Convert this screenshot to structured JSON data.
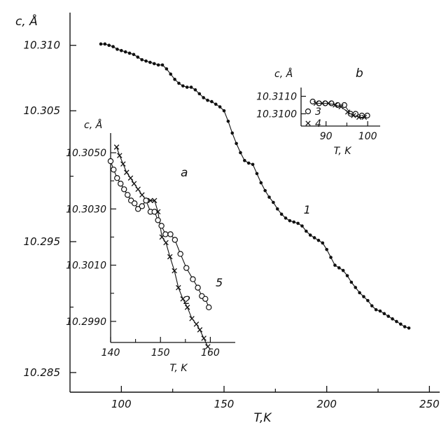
{
  "chart_data": [
    {
      "id": "main",
      "type": "scatter",
      "ylabel": "c, Å",
      "xlabel": "T,K",
      "xlim": [
        75,
        255
      ],
      "ylim": [
        10.2835,
        10.3125
      ],
      "xticks": [
        100,
        150,
        200,
        250
      ],
      "yticks": [
        10.285,
        10.295,
        10.305,
        10.31
      ],
      "ytick_labels": [
        "10.285",
        "10.295",
        "10.305",
        "10.310"
      ],
      "xminor": [
        125,
        175,
        225
      ],
      "yminor": [
        10.29,
        10.3
      ],
      "series": [
        {
          "name": "1",
          "marker": "dot",
          "x": [
            90,
            92,
            94,
            96,
            98,
            100,
            102,
            104,
            106,
            108,
            110,
            112,
            114,
            116,
            118,
            120,
            122,
            124,
            126,
            128,
            130,
            132,
            134,
            136,
            138,
            140,
            142,
            144,
            146,
            148,
            150,
            152,
            154,
            156,
            158,
            160,
            162,
            164,
            166,
            168,
            170,
            172,
            174,
            176,
            178,
            180,
            182,
            184,
            186,
            188,
            190,
            192,
            194,
            196,
            198,
            200,
            202,
            204,
            206,
            208,
            210,
            212,
            214,
            216,
            218,
            220,
            222,
            224,
            226,
            228,
            230,
            232,
            234,
            236,
            238,
            240
          ],
          "y": [
            10.3101,
            10.3101,
            10.31,
            10.3099,
            10.3097,
            10.3096,
            10.3095,
            10.3094,
            10.3093,
            10.3091,
            10.3089,
            10.3088,
            10.3087,
            10.3086,
            10.3085,
            10.3085,
            10.3082,
            10.3078,
            10.3074,
            10.3071,
            10.3069,
            10.3068,
            10.3068,
            10.3066,
            10.3063,
            10.306,
            10.3058,
            10.3057,
            10.3055,
            10.3053,
            10.305,
            10.3042,
            10.3033,
            10.3025,
            10.3018,
            10.3012,
            10.301,
            10.3009,
            10.3002,
            10.2995,
            10.2989,
            10.2984,
            10.298,
            10.2975,
            10.2971,
            10.2968,
            10.2966,
            10.2965,
            10.2964,
            10.2962,
            10.2958,
            10.2955,
            10.2953,
            10.2951,
            10.2949,
            10.2944,
            10.2938,
            10.2932,
            10.293,
            10.2928,
            10.2924,
            10.2919,
            10.2915,
            10.2911,
            10.2908,
            10.2905,
            10.2901,
            10.2898,
            10.2897,
            10.2895,
            10.2893,
            10.2891,
            10.2889,
            10.2887,
            10.2885,
            10.2884
          ]
        }
      ],
      "curve_label": "1",
      "color": "#111111"
    },
    {
      "id": "inset-a",
      "type": "scatter",
      "panel_label": "a",
      "ylabel": "c, Å",
      "xlabel": "T, K",
      "xlim": [
        140,
        165
      ],
      "ylim": [
        10.29825,
        10.3057
      ],
      "xticks": [
        140,
        150,
        160
      ],
      "xminor": [
        145,
        155
      ],
      "yticks": [
        10.299,
        10.301,
        10.303,
        10.305
      ],
      "ytick_labels": [
        "10.2990",
        "10.3010",
        "10.3030",
        "10.3050"
      ],
      "yminor": [
        10.3,
        10.302,
        10.304
      ],
      "series": [
        {
          "name": "2",
          "marker": "x",
          "x": [
            141.2,
            141.8,
            142.5,
            143.2,
            144.0,
            144.7,
            145.5,
            146.3,
            147.2,
            148.0,
            148.8,
            149.5,
            150.3,
            151.1,
            151.9,
            152.8,
            153.6,
            154.5,
            155.4,
            156.3,
            157.2,
            157.9,
            158.7,
            159.5
          ],
          "y": [
            10.3052,
            10.3049,
            10.3046,
            10.3043,
            10.3041,
            10.3039,
            10.3037,
            10.3035,
            10.3033,
            10.3033,
            10.3033,
            10.3029,
            10.302,
            10.3018,
            10.3013,
            10.3008,
            10.3002,
            10.2998,
            10.2995,
            10.2991,
            10.2989,
            10.2987,
            10.2984,
            10.2981
          ]
        },
        {
          "name": "5",
          "marker": "circle",
          "x": [
            140.0,
            140.6,
            141.3,
            142.0,
            142.7,
            143.4,
            144.1,
            144.8,
            145.5,
            146.3,
            147.1,
            148.0,
            148.8,
            149.5,
            150.2,
            151.0,
            152.0,
            152.9,
            154.0,
            155.2,
            156.5,
            157.5,
            158.3,
            159.0,
            159.7
          ],
          "y": [
            10.3047,
            10.3044,
            10.3041,
            10.3039,
            10.3037,
            10.3035,
            10.3033,
            10.3032,
            10.303,
            10.3031,
            10.3033,
            10.3029,
            10.3029,
            10.3026,
            10.3024,
            10.3021,
            10.3021,
            10.3019,
            10.3014,
            10.3009,
            10.3005,
            10.3002,
            10.2999,
            10.2998,
            10.2995
          ]
        }
      ],
      "curve_labels": {
        "x": "2",
        "o": "5"
      }
    },
    {
      "id": "inset-b",
      "type": "scatter",
      "panel_label": "b",
      "ylabel": "c, Å",
      "xlabel": "T, K",
      "xlim": [
        84,
        103
      ],
      "ylim": [
        10.3093,
        10.3115
      ],
      "xticks": [
        90,
        100
      ],
      "xminor": [
        95
      ],
      "yticks": [
        10.31,
        10.311
      ],
      "ytick_labels": [
        "10.3100",
        "10.3110"
      ],
      "series": [
        {
          "name": "3",
          "marker": "circle",
          "x": [
            86.8,
            88.3,
            89.8,
            91.3,
            92.8,
            94.4,
            95.9,
            97.1,
            98.6,
            99.9
          ],
          "y": [
            10.3107,
            10.3106,
            10.3106,
            10.3106,
            10.3105,
            10.3105,
            10.31,
            10.31,
            10.3099,
            10.3099
          ]
        },
        {
          "name": "4",
          "marker": "x",
          "x": [
            87.6,
            89.1,
            90.6,
            92.2,
            93.6,
            95.2,
            96.6,
            97.9,
            99.2
          ],
          "y": [
            10.3106,
            10.3106,
            10.3106,
            10.3105,
            10.3104,
            10.3101,
            10.3099,
            10.3098,
            10.3098
          ]
        }
      ],
      "legend": {
        "circle_label": "3",
        "x_label": "4"
      }
    }
  ]
}
